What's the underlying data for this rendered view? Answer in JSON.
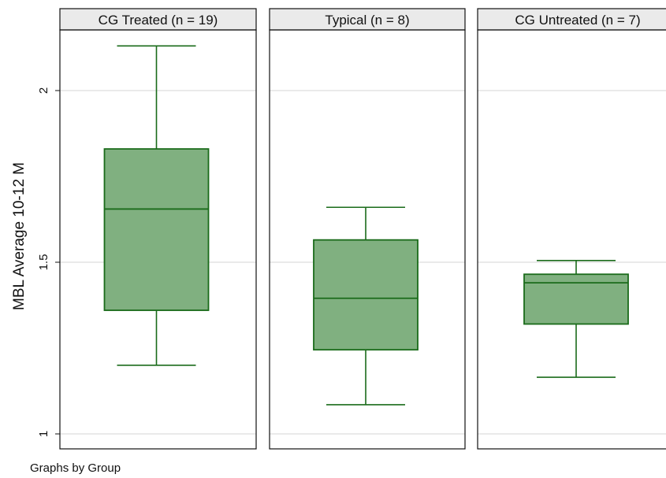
{
  "chart_data": {
    "type": "box",
    "ylabel": "MBL Average 10-12 M",
    "ylim": [
      0.97,
      2.18
    ],
    "yticks": [
      1,
      1.5,
      2
    ],
    "ytick_labels": [
      "1",
      "1.5",
      "2"
    ],
    "grid": true,
    "box_fill": "#80b080",
    "box_stroke": "#1a6b1a",
    "panels": [
      {
        "title": "CG Treated (n = 19)",
        "min": 1.2,
        "q1": 1.36,
        "median": 1.655,
        "q3": 1.83,
        "max": 2.13
      },
      {
        "title": "Typical (n = 8)",
        "min": 1.085,
        "q1": 1.245,
        "median": 1.395,
        "q3": 1.565,
        "max": 1.66
      },
      {
        "title": "CG Untreated (n = 7)",
        "min": 1.165,
        "q1": 1.32,
        "median": 1.44,
        "q3": 1.465,
        "max": 1.505
      }
    ]
  },
  "footnote": "Graphs by Group"
}
